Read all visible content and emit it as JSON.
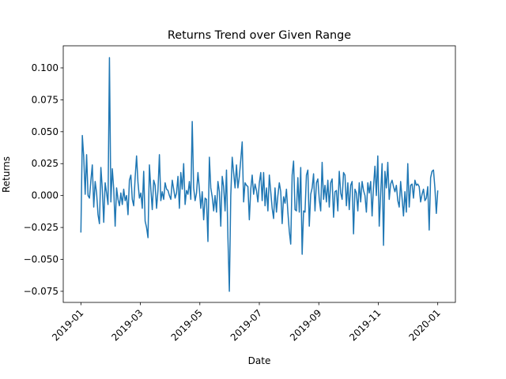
{
  "chart_data": {
    "type": "line",
    "title": "Returns Trend over Given Range",
    "x_label": "Date",
    "y_label": "Returns",
    "xticks": [
      "2019-01",
      "2019-03",
      "2019-05",
      "2019-07",
      "2019-09",
      "2019-11",
      "2020-01"
    ],
    "ylim": [
      -0.0837,
      0.1173
    ],
    "yticks": [
      {
        "value": -0.075,
        "label": "−0.075"
      },
      {
        "value": -0.05,
        "label": "−0.050"
      },
      {
        "value": -0.025,
        "label": "−0.025"
      },
      {
        "value": 0,
        "label": "0.000"
      },
      {
        "value": 0.025,
        "label": "0.025"
      },
      {
        "value": 0.05,
        "label": "0.050"
      },
      {
        "value": 0.075,
        "label": "0.075"
      },
      {
        "value": 0.1,
        "label": "0.100"
      }
    ],
    "color": "#1f77b4",
    "values": [
      -0.029,
      0.047,
      0.03,
      0.001,
      0.032,
      0.0,
      -0.002,
      0.012,
      0.024,
      -0.009,
      0.011,
      0.002,
      -0.015,
      -0.022,
      0.022,
      0.005,
      -0.021,
      0.01,
      0.002,
      -0.007,
      0.108,
      -0.005,
      0.021,
      0.005,
      -0.024,
      0.006,
      -0.003,
      -0.008,
      0.002,
      -0.007,
      0.005,
      -0.004,
      0.0,
      -0.015,
      0.012,
      0.016,
      -0.003,
      -0.008,
      0.014,
      0.031,
      0.01,
      -0.002,
      0.002,
      -0.01,
      0.019,
      -0.02,
      -0.025,
      -0.033,
      0.024,
      0.005,
      -0.011,
      0.012,
      0.008,
      -0.01,
      0.004,
      0.032,
      -0.004,
      0.003,
      -0.003,
      0.01,
      0.005,
      0.004,
      0.0,
      -0.003,
      0.012,
      0.005,
      -0.002,
      0.002,
      0.015,
      -0.01,
      0.018,
      0.005,
      0.025,
      -0.007,
      0.004,
      0.001,
      0.011,
      -0.003,
      0.058,
      0.006,
      -0.004,
      0.002,
      0.018,
      0.005,
      -0.01,
      0.003,
      -0.019,
      -0.002,
      -0.003,
      -0.036,
      0.03,
      0.006,
      -0.001,
      -0.012,
      0.0,
      -0.013,
      0.011,
      0.003,
      -0.024,
      0.015,
      0.007,
      -0.012,
      0.02,
      -0.033,
      -0.075,
      0.0,
      0.03,
      0.018,
      0.006,
      0.024,
      0.006,
      0.015,
      0.028,
      0.042,
      -0.005,
      0.01,
      0.008,
      0.007,
      -0.019,
      0.005,
      0.016,
      0.001,
      0.009,
      0.004,
      -0.005,
      0.01,
      0.018,
      -0.004,
      0.018,
      -0.008,
      0.006,
      -0.012,
      0.016,
      0.003,
      -0.01,
      -0.018,
      0.006,
      -0.013,
      0.0,
      0.01,
      0.003,
      -0.022,
      -0.001,
      -0.006,
      0.005,
      -0.013,
      -0.028,
      -0.038,
      0.016,
      0.027,
      -0.011,
      -0.012,
      0.014,
      -0.013,
      0.022,
      -0.046,
      -0.012,
      -0.013,
      0.016,
      0.02,
      -0.024,
      0.001,
      0.006,
      0.017,
      -0.012,
      0.01,
      0.013,
      -0.003,
      -0.012,
      0.026,
      -0.003,
      0.008,
      -0.005,
      0.012,
      -0.009,
      0.01,
      0.013,
      -0.017,
      0.003,
      0.004,
      -0.012,
      0.019,
      0.002,
      -0.003,
      0.018,
      0.016,
      -0.008,
      0.01,
      -0.011,
      0.008,
      0.011,
      -0.03,
      0.005,
      0.002,
      -0.012,
      0.01,
      -0.005,
      0.011,
      0.004,
      0.0,
      -0.013,
      0.01,
      0.002,
      0.011,
      -0.016,
      0.007,
      0.023,
      0.0,
      0.031,
      -0.024,
      0.001,
      0.025,
      -0.039,
      0.019,
      0.006,
      0.026,
      -0.003,
      0.009,
      0.012,
      0.007,
      0.003,
      0.008,
      -0.004,
      -0.009,
      0.011,
      -0.002,
      -0.016,
      0.003,
      -0.013,
      0.025,
      -0.009,
      0.008,
      0.009,
      -0.002,
      0.012,
      0.008,
      0.009,
      0.007,
      -0.005,
      0.001,
      0.005,
      -0.004,
      -0.002,
      0.007,
      -0.027,
      0.014,
      0.019,
      0.02,
      0.006,
      -0.014,
      0.004
    ]
  }
}
